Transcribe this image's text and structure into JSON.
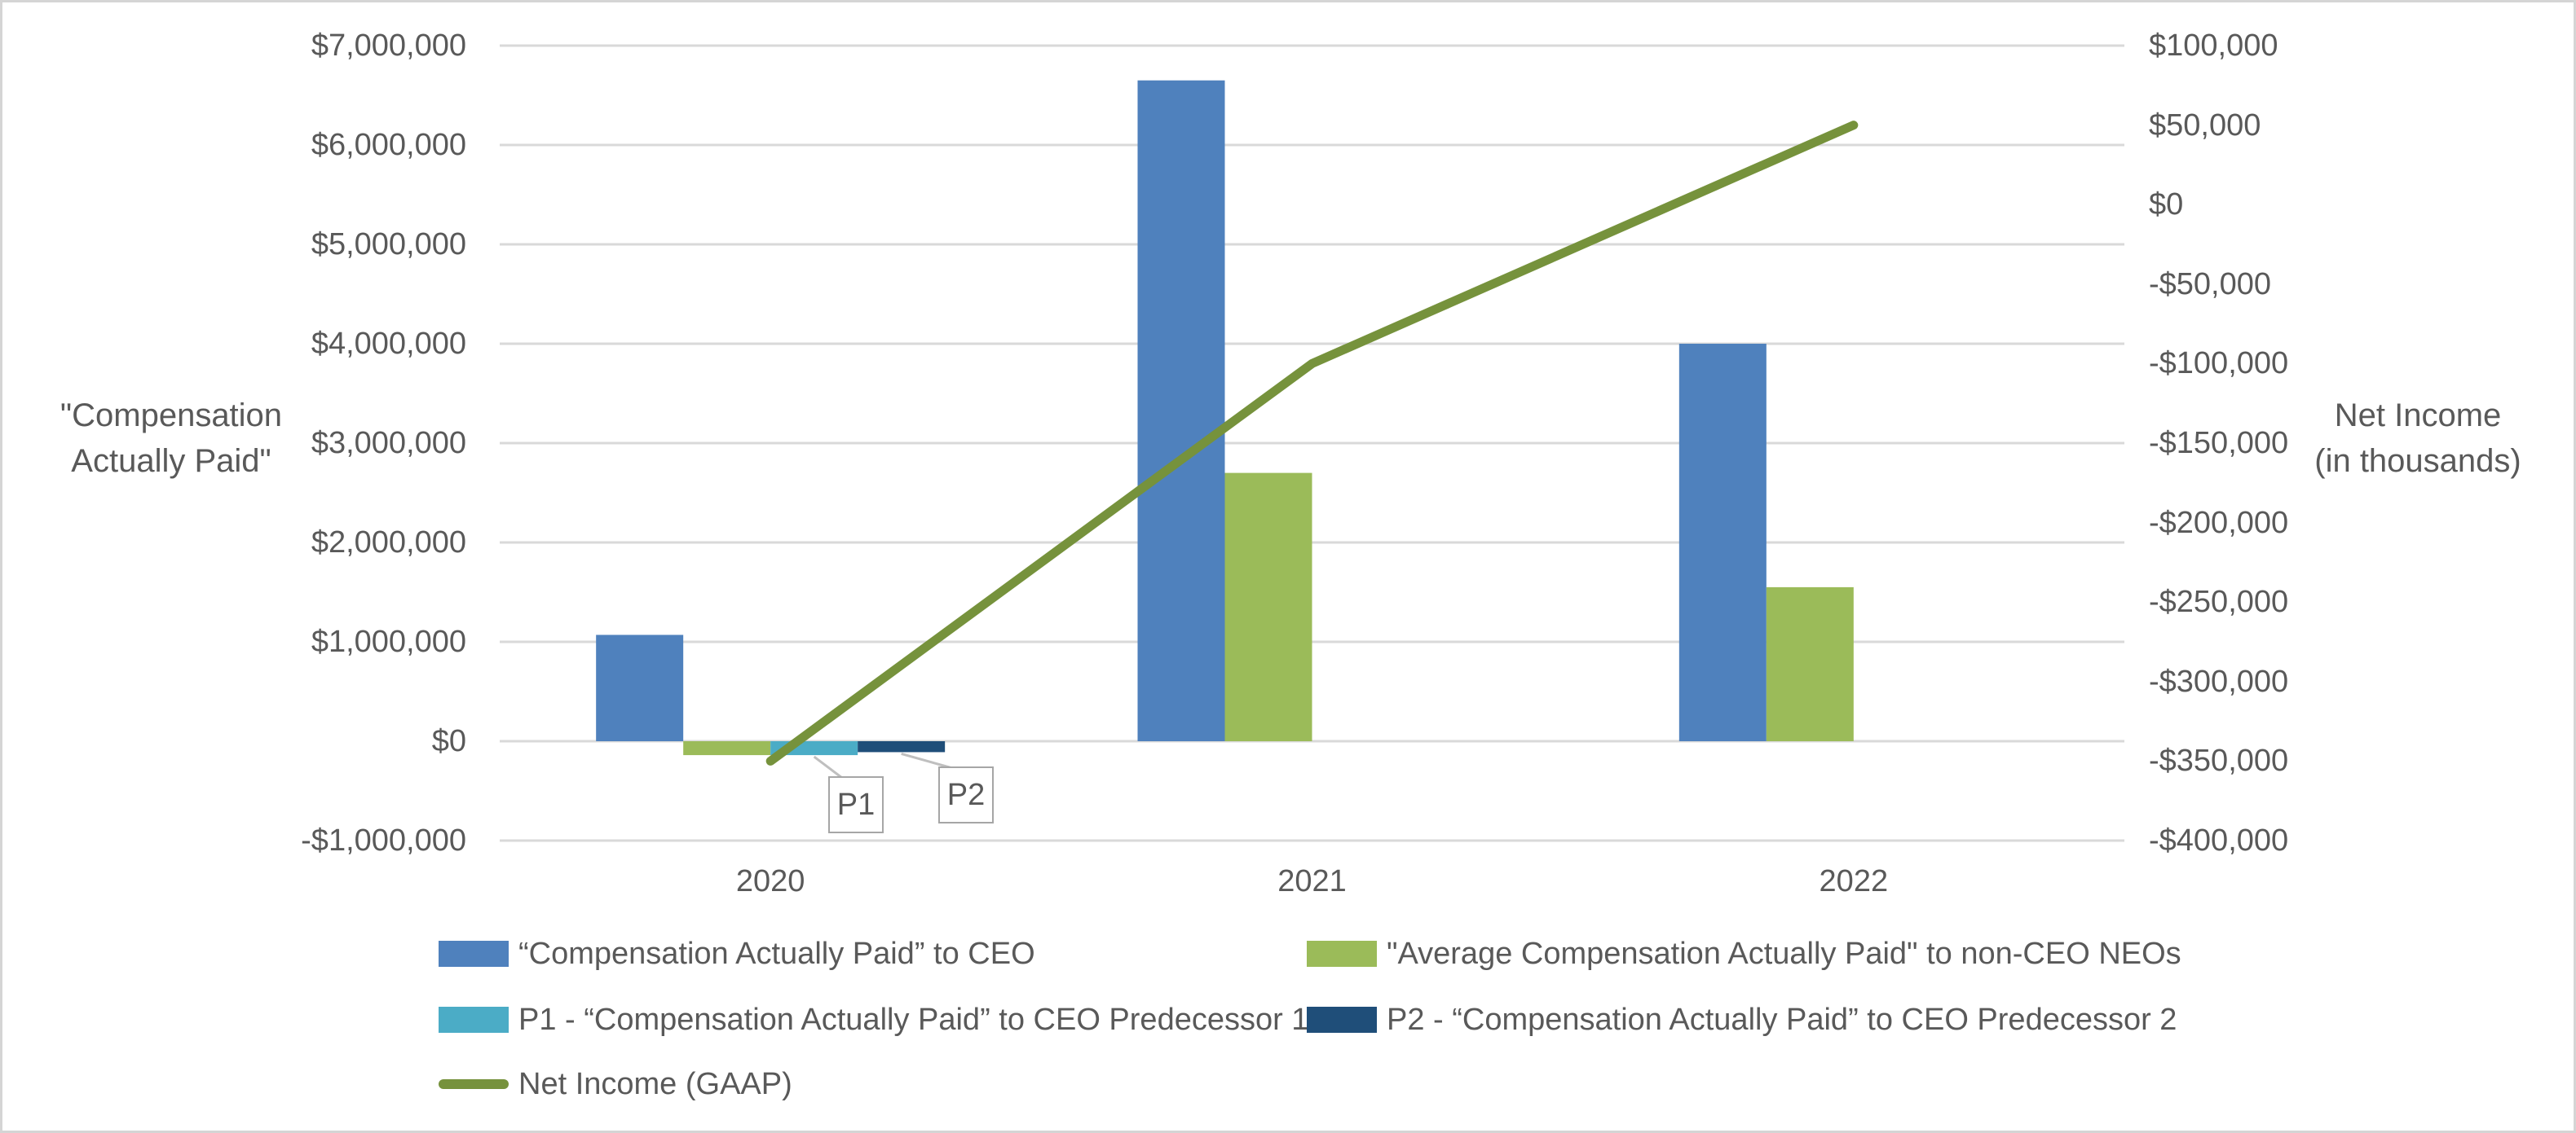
{
  "chart_data": {
    "type": "bar+line combo",
    "title": "",
    "categories": [
      "2020",
      "2021",
      "2022"
    ],
    "series": [
      {
        "name": "“Compensation Actually Paid” to CEO",
        "type": "bar",
        "axis": "left",
        "color": "#4F81BD",
        "values": [
          1070000,
          6650000,
          4000000
        ]
      },
      {
        "name": "\"Average Compensation Actually Paid\" to non-CEO NEOs",
        "type": "bar",
        "axis": "left",
        "color": "#9BBB59",
        "values": [
          -140000,
          2700000,
          1550000
        ]
      },
      {
        "name": "P1 - “Compensation Actually Paid” to CEO Predecessor 1",
        "type": "bar",
        "axis": "left",
        "color": "#4BACC6",
        "values": [
          -140000,
          null,
          null
        ]
      },
      {
        "name": "P2 - “Compensation Actually Paid” to CEO Predecessor 2",
        "type": "bar",
        "axis": "left",
        "color": "#1F4E79",
        "values": [
          -110000,
          null,
          null
        ]
      },
      {
        "name": "Net Income (GAAP)",
        "type": "line",
        "axis": "right",
        "color": "#76923C",
        "values": [
          -350000,
          -100000,
          50000
        ]
      }
    ],
    "left_axis": {
      "title": "\"Compensation\nActually Paid\"",
      "min": -1000000,
      "max": 7000000,
      "step": 1000000,
      "ticks": [
        {
          "value": 7000000,
          "label": "$7,000,000"
        },
        {
          "value": 6000000,
          "label": "$6,000,000"
        },
        {
          "value": 5000000,
          "label": "$5,000,000"
        },
        {
          "value": 4000000,
          "label": "$4,000,000"
        },
        {
          "value": 3000000,
          "label": "$3,000,000"
        },
        {
          "value": 2000000,
          "label": "$2,000,000"
        },
        {
          "value": 1000000,
          "label": "$1,000,000"
        },
        {
          "value": 0,
          "label": "$0"
        },
        {
          "value": -1000000,
          "label": "-$1,000,000"
        }
      ]
    },
    "right_axis": {
      "title": "Net Income\n(in thousands)",
      "min": -400000,
      "max": 100000,
      "step": 50000,
      "ticks": [
        {
          "value": 100000,
          "label": "$100,000"
        },
        {
          "value": 50000,
          "label": "$50,000"
        },
        {
          "value": 0,
          "label": "$0"
        },
        {
          "value": -50000,
          "label": "-$50,000"
        },
        {
          "value": -100000,
          "label": "-$100,000"
        },
        {
          "value": -150000,
          "label": "-$150,000"
        },
        {
          "value": -200000,
          "label": "-$200,000"
        },
        {
          "value": -250000,
          "label": "-$250,000"
        },
        {
          "value": -300000,
          "label": "-$300,000"
        },
        {
          "value": -350000,
          "label": "-$350,000"
        },
        {
          "value": -400000,
          "label": "-$400,000"
        }
      ]
    },
    "annotations": [
      {
        "label": "P1",
        "series": 2,
        "category": "2020"
      },
      {
        "label": "P2",
        "series": 3,
        "category": "2020"
      }
    ],
    "grid": true,
    "gridline_color": "#D9D9D9",
    "text_color": "#595959",
    "legend_position": "bottom"
  }
}
